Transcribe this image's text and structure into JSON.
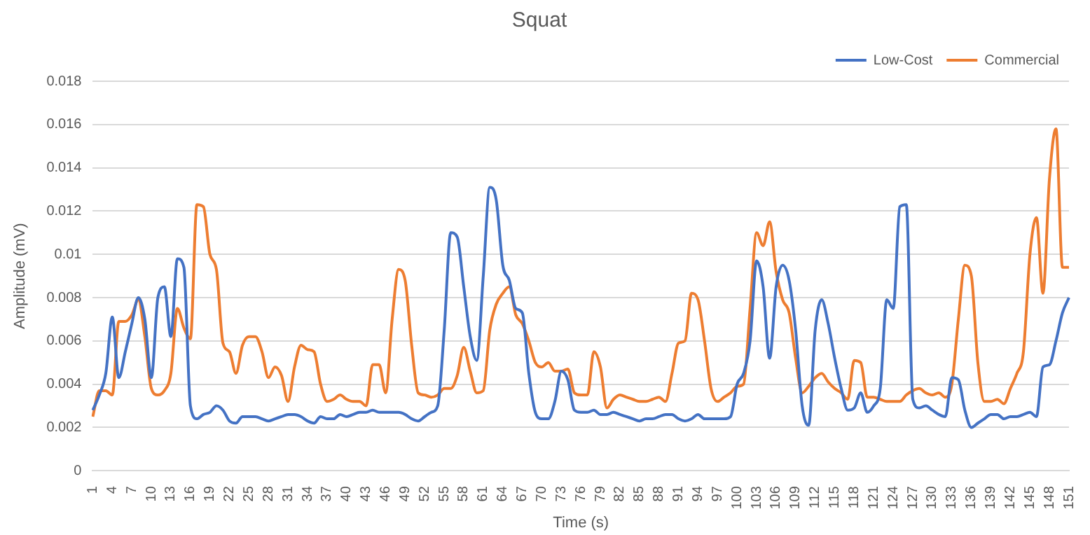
{
  "chart_data": {
    "type": "line",
    "title": "Squat",
    "xlabel": "Time (s)",
    "ylabel": "Amplitude (mV)",
    "categories": [
      "1",
      null,
      null,
      "4",
      null,
      null,
      "7",
      null,
      null,
      "10",
      null,
      null,
      "13",
      null,
      null,
      "16",
      null,
      null,
      "19",
      null,
      null,
      "22",
      null,
      null,
      "25",
      null,
      null,
      "28",
      null,
      null,
      "31",
      null,
      null,
      "34",
      null,
      null,
      "37",
      null,
      null,
      "40",
      null,
      null,
      "43",
      null,
      null,
      "46",
      null,
      null,
      "49",
      null,
      null,
      "52",
      null,
      null,
      "55",
      null,
      null,
      "58",
      null,
      null,
      "61",
      null,
      null,
      "64",
      null,
      null,
      "67",
      null,
      null,
      "70",
      null,
      null,
      "73",
      null,
      null,
      "76",
      null,
      null,
      "79",
      null,
      null,
      "82",
      null,
      null,
      "85",
      null,
      null,
      "88",
      null,
      null,
      "91",
      null,
      null,
      "94",
      null,
      null,
      "97",
      null,
      null,
      "100",
      null,
      null,
      "103",
      null,
      null,
      "106",
      null,
      null,
      "109",
      null,
      null,
      "112",
      null,
      null,
      "115",
      null,
      null,
      "118",
      null,
      null,
      "121",
      null,
      null,
      "124",
      null,
      null,
      "127",
      null,
      null,
      "130",
      null,
      null,
      "133",
      null,
      null,
      "136",
      null,
      null,
      "139",
      null,
      null,
      "142",
      null,
      null,
      "145",
      null,
      null,
      "148",
      null,
      null,
      "151"
    ],
    "series": [
      {
        "name": "Low-Cost",
        "color": "#4472c4",
        "values": [
          0.0028,
          0.0035,
          0.0045,
          0.0071,
          0.0043,
          0.0055,
          0.0068,
          0.008,
          0.007,
          0.0043,
          0.008,
          0.0085,
          0.0062,
          0.0098,
          0.0094,
          0.003,
          0.0024,
          0.0026,
          0.0027,
          0.003,
          0.0028,
          0.0023,
          0.0022,
          0.0025,
          0.0025,
          0.0025,
          0.0024,
          0.0023,
          0.0024,
          0.0025,
          0.0026,
          0.0026,
          0.0025,
          0.0023,
          0.0022,
          0.0025,
          0.0024,
          0.0024,
          0.0026,
          0.0025,
          0.0026,
          0.0027,
          0.0027,
          0.0028,
          0.0027,
          0.0027,
          0.0027,
          0.0027,
          0.0026,
          0.0024,
          0.0023,
          0.0025,
          0.0027,
          0.003,
          0.0065,
          0.011,
          0.0108,
          0.0085,
          0.0062,
          0.0051,
          0.009,
          0.0131,
          0.0125,
          0.0095,
          0.0088,
          0.0075,
          0.0073,
          0.0045,
          0.0027,
          0.0024,
          0.0024,
          0.0032,
          0.0046,
          0.0042,
          0.0028,
          0.0027,
          0.0027,
          0.0028,
          0.0026,
          0.0026,
          0.0027,
          0.0026,
          0.0025,
          0.0024,
          0.0023,
          0.0024,
          0.0024,
          0.0025,
          0.0026,
          0.0026,
          0.0024,
          0.0023,
          0.0024,
          0.0026,
          0.0024,
          0.0024,
          0.0024,
          0.0024,
          0.0025,
          0.004,
          0.0045,
          0.006,
          0.0097,
          0.0085,
          0.0052,
          0.0085,
          0.0095,
          0.0088,
          0.0065,
          0.003,
          0.0021,
          0.0065,
          0.0079,
          0.0068,
          0.0052,
          0.0038,
          0.0028,
          0.0029,
          0.0036,
          0.0027,
          0.003,
          0.0038,
          0.0079,
          0.0075,
          0.0122,
          0.0123,
          0.0033,
          0.0029,
          0.003,
          0.0028,
          0.0026,
          0.0025,
          0.0043,
          0.0042,
          0.0028,
          0.002,
          0.0022,
          0.0024,
          0.0026,
          0.0026,
          0.0024,
          0.0025,
          0.0025,
          0.0026,
          0.0027,
          0.0025,
          0.0048,
          0.0049,
          0.006,
          0.0073,
          0.008
        ]
      },
      {
        "name": "Commercial",
        "color": "#ed7d31",
        "values": [
          0.0025,
          0.0037,
          0.0037,
          0.0035,
          0.0069,
          0.0069,
          0.0072,
          0.0079,
          0.0062,
          0.0038,
          0.0035,
          0.0037,
          0.0045,
          0.0075,
          0.0066,
          0.0061,
          0.0123,
          0.0122,
          0.01,
          0.0093,
          0.0059,
          0.0055,
          0.0045,
          0.0058,
          0.0062,
          0.0062,
          0.0055,
          0.0043,
          0.0048,
          0.0044,
          0.0032,
          0.0048,
          0.0058,
          0.0056,
          0.0055,
          0.004,
          0.0032,
          0.0033,
          0.0035,
          0.0033,
          0.0032,
          0.0032,
          0.003,
          0.0049,
          0.0049,
          0.0036,
          0.007,
          0.0093,
          0.0088,
          0.0058,
          0.0036,
          0.0035,
          0.0034,
          0.0035,
          0.0038,
          0.0038,
          0.0044,
          0.0057,
          0.0046,
          0.0036,
          0.0037,
          0.0065,
          0.0077,
          0.0082,
          0.0085,
          0.0072,
          0.0068,
          0.006,
          0.005,
          0.0048,
          0.005,
          0.0046,
          0.0046,
          0.0047,
          0.0036,
          0.0035,
          0.0035,
          0.0055,
          0.0048,
          0.0029,
          0.0033,
          0.0035,
          0.0034,
          0.0033,
          0.0032,
          0.0032,
          0.0033,
          0.0034,
          0.0032,
          0.0045,
          0.0059,
          0.006,
          0.0082,
          0.0079,
          0.006,
          0.0038,
          0.0032,
          0.0034,
          0.0036,
          0.0039,
          0.004,
          0.0075,
          0.011,
          0.0104,
          0.0115,
          0.0092,
          0.0079,
          0.0073,
          0.0052,
          0.0036,
          0.0039,
          0.0043,
          0.0045,
          0.0041,
          0.0038,
          0.0036,
          0.0033,
          0.0051,
          0.005,
          0.0034,
          0.0034,
          0.0033,
          0.0032,
          0.0032,
          0.0032,
          0.0035,
          0.0037,
          0.0038,
          0.0036,
          0.0035,
          0.0036,
          0.0034,
          0.004,
          0.007,
          0.0095,
          0.009,
          0.005,
          0.0032,
          0.0032,
          0.0033,
          0.0031,
          0.0038,
          0.0045,
          0.0055,
          0.01,
          0.0117,
          0.0082,
          0.0135,
          0.0158,
          0.0094,
          0.0094
        ]
      }
    ],
    "ylim": [
      0,
      0.018
    ],
    "yticks": [
      0,
      0.002,
      0.004,
      0.006,
      0.008,
      0.01,
      0.012,
      0.014,
      0.016,
      0.018
    ],
    "grid": "y",
    "legend": "top right",
    "marker": "none",
    "line_style": "solid"
  }
}
